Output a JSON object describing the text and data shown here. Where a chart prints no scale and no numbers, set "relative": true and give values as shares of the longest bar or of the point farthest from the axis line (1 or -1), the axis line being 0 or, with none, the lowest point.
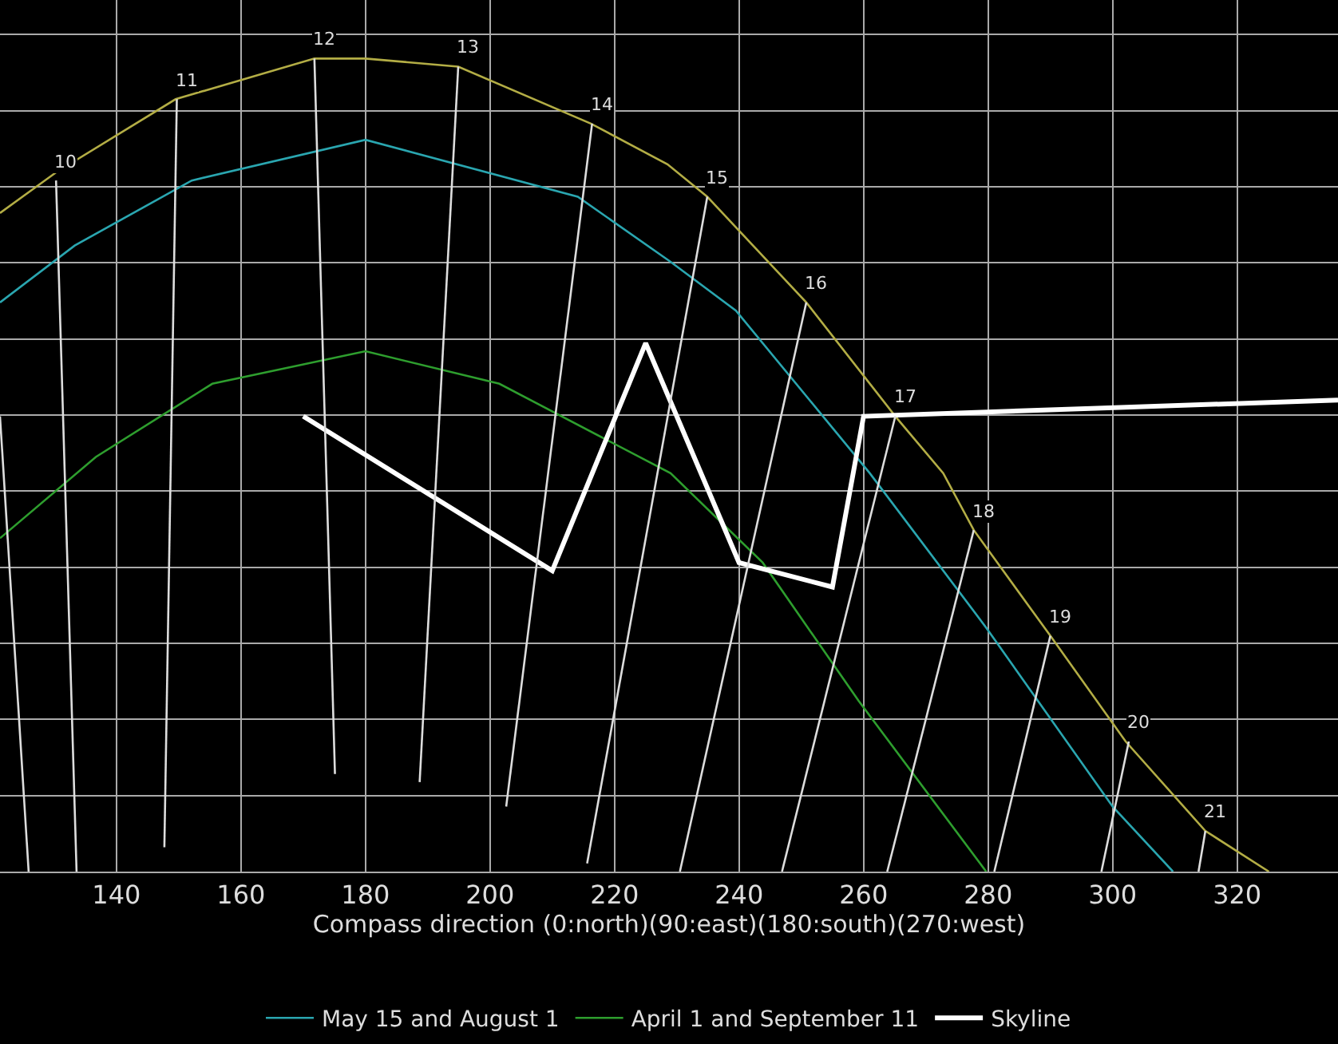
{
  "chart_data": {
    "type": "line",
    "relative": true,
    "xlabel": "Compass direction (0:north)(90:east)(180:south)(270:west)",
    "xlim": [
      121.3,
      336.2
    ],
    "xticks": [
      140,
      160,
      180,
      200,
      220,
      240,
      260,
      280,
      300,
      320
    ],
    "grid": true,
    "legend": "bottom",
    "marker": "none",
    "line_style": "solid",
    "series": [
      {
        "color": "#b3ad45",
        "x": [
          121.3,
          130.3,
          149.5,
          171.8,
          180,
          194.9,
          216.2,
          228.5,
          234.9,
          250.8,
          265.1,
          272.8,
          277.7,
          290.0,
          302.1,
          314.9,
          325.1
        ],
        "values": [
          0.81,
          0.86,
          0.95,
          1.0,
          1.0,
          0.99,
          0.92,
          0.87,
          0.83,
          0.7,
          0.56,
          0.49,
          0.42,
          0.29,
          0.16,
          0.05,
          0
        ]
      },
      {
        "name": "May 15 and August 1",
        "color": "#2aa6b0",
        "x": [
          121.3,
          133.3,
          152.1,
          180,
          214.1,
          229.0,
          239.5,
          261.0,
          279.7,
          300.0,
          309.7
        ],
        "values": [
          0.7,
          0.77,
          0.85,
          0.9,
          0.83,
          0.75,
          0.69,
          0.49,
          0.3,
          0.08,
          0
        ]
      },
      {
        "name": "April 1 and September 11",
        "color": "#2e9e2e",
        "x": [
          121.3,
          136.7,
          155.4,
          180,
          201.5,
          229.0,
          243.8,
          259.2,
          279.7
        ],
        "values": [
          0.41,
          0.51,
          0.6,
          0.64,
          0.6,
          0.49,
          0.38,
          0.21,
          0
        ]
      },
      {
        "name": "Skyline",
        "color": "#ffffff",
        "x": [
          170,
          210,
          225,
          240,
          255,
          260,
          336.2
        ],
        "values": [
          0.56,
          0.37,
          0.65,
          0.38,
          0.35,
          0.56,
          0.58
        ]
      },
      {
        "color": "#dddddd",
        "x": [
          121.3,
          125.9
        ],
        "values": [
          0.56,
          0
        ]
      },
      {
        "color": "#dddddd",
        "x": [
          130.3,
          133.6
        ],
        "values": [
          0.85,
          0
        ]
      },
      {
        "color": "#dddddd",
        "x": [
          149.7,
          147.7
        ],
        "values": [
          0.95,
          0.03
        ]
      },
      {
        "color": "#dddddd",
        "x": [
          171.8,
          175.1
        ],
        "values": [
          1.0,
          0.12
        ]
      },
      {
        "color": "#dddddd",
        "x": [
          194.9,
          188.7
        ],
        "values": [
          0.99,
          0.11
        ]
      },
      {
        "color": "#dddddd",
        "x": [
          216.4,
          202.6
        ],
        "values": [
          0.92,
          0.08
        ]
      },
      {
        "color": "#dddddd",
        "x": [
          234.9,
          215.6
        ],
        "values": [
          0.83,
          0.01
        ]
      },
      {
        "color": "#dddddd",
        "x": [
          250.8,
          230.5
        ],
        "values": [
          0.7,
          0
        ]
      },
      {
        "color": "#dddddd",
        "x": [
          265.1,
          246.9
        ],
        "values": [
          0.56,
          0
        ]
      },
      {
        "color": "#dddddd",
        "x": [
          277.7,
          263.8
        ],
        "values": [
          0.42,
          0
        ]
      },
      {
        "color": "#dddddd",
        "x": [
          290.0,
          281.0
        ],
        "values": [
          0.29,
          0
        ]
      },
      {
        "color": "#dddddd",
        "x": [
          302.6,
          298.2
        ],
        "values": [
          0.16,
          0
        ]
      },
      {
        "color": "#dddddd",
        "x": [
          314.9,
          313.8
        ],
        "values": [
          0.05,
          0
        ]
      }
    ],
    "annotations": [
      {
        "text": "10",
        "x": 130.3,
        "y": 0.85
      },
      {
        "text": "11",
        "x": 149.7,
        "y": 0.95
      },
      {
        "text": "12",
        "x": 171.8,
        "y": 1.0
      },
      {
        "text": "13",
        "x": 194.9,
        "y": 0.99
      },
      {
        "text": "14",
        "x": 216.4,
        "y": 0.92
      },
      {
        "text": "15",
        "x": 234.9,
        "y": 0.83
      },
      {
        "text": "16",
        "x": 250.8,
        "y": 0.7
      },
      {
        "text": "17",
        "x": 265.1,
        "y": 0.56
      },
      {
        "text": "18",
        "x": 277.7,
        "y": 0.42
      },
      {
        "text": "19",
        "x": 290.0,
        "y": 0.29
      },
      {
        "text": "20",
        "x": 302.6,
        "y": 0.16
      },
      {
        "text": "21",
        "x": 314.9,
        "y": 0.05
      }
    ]
  }
}
